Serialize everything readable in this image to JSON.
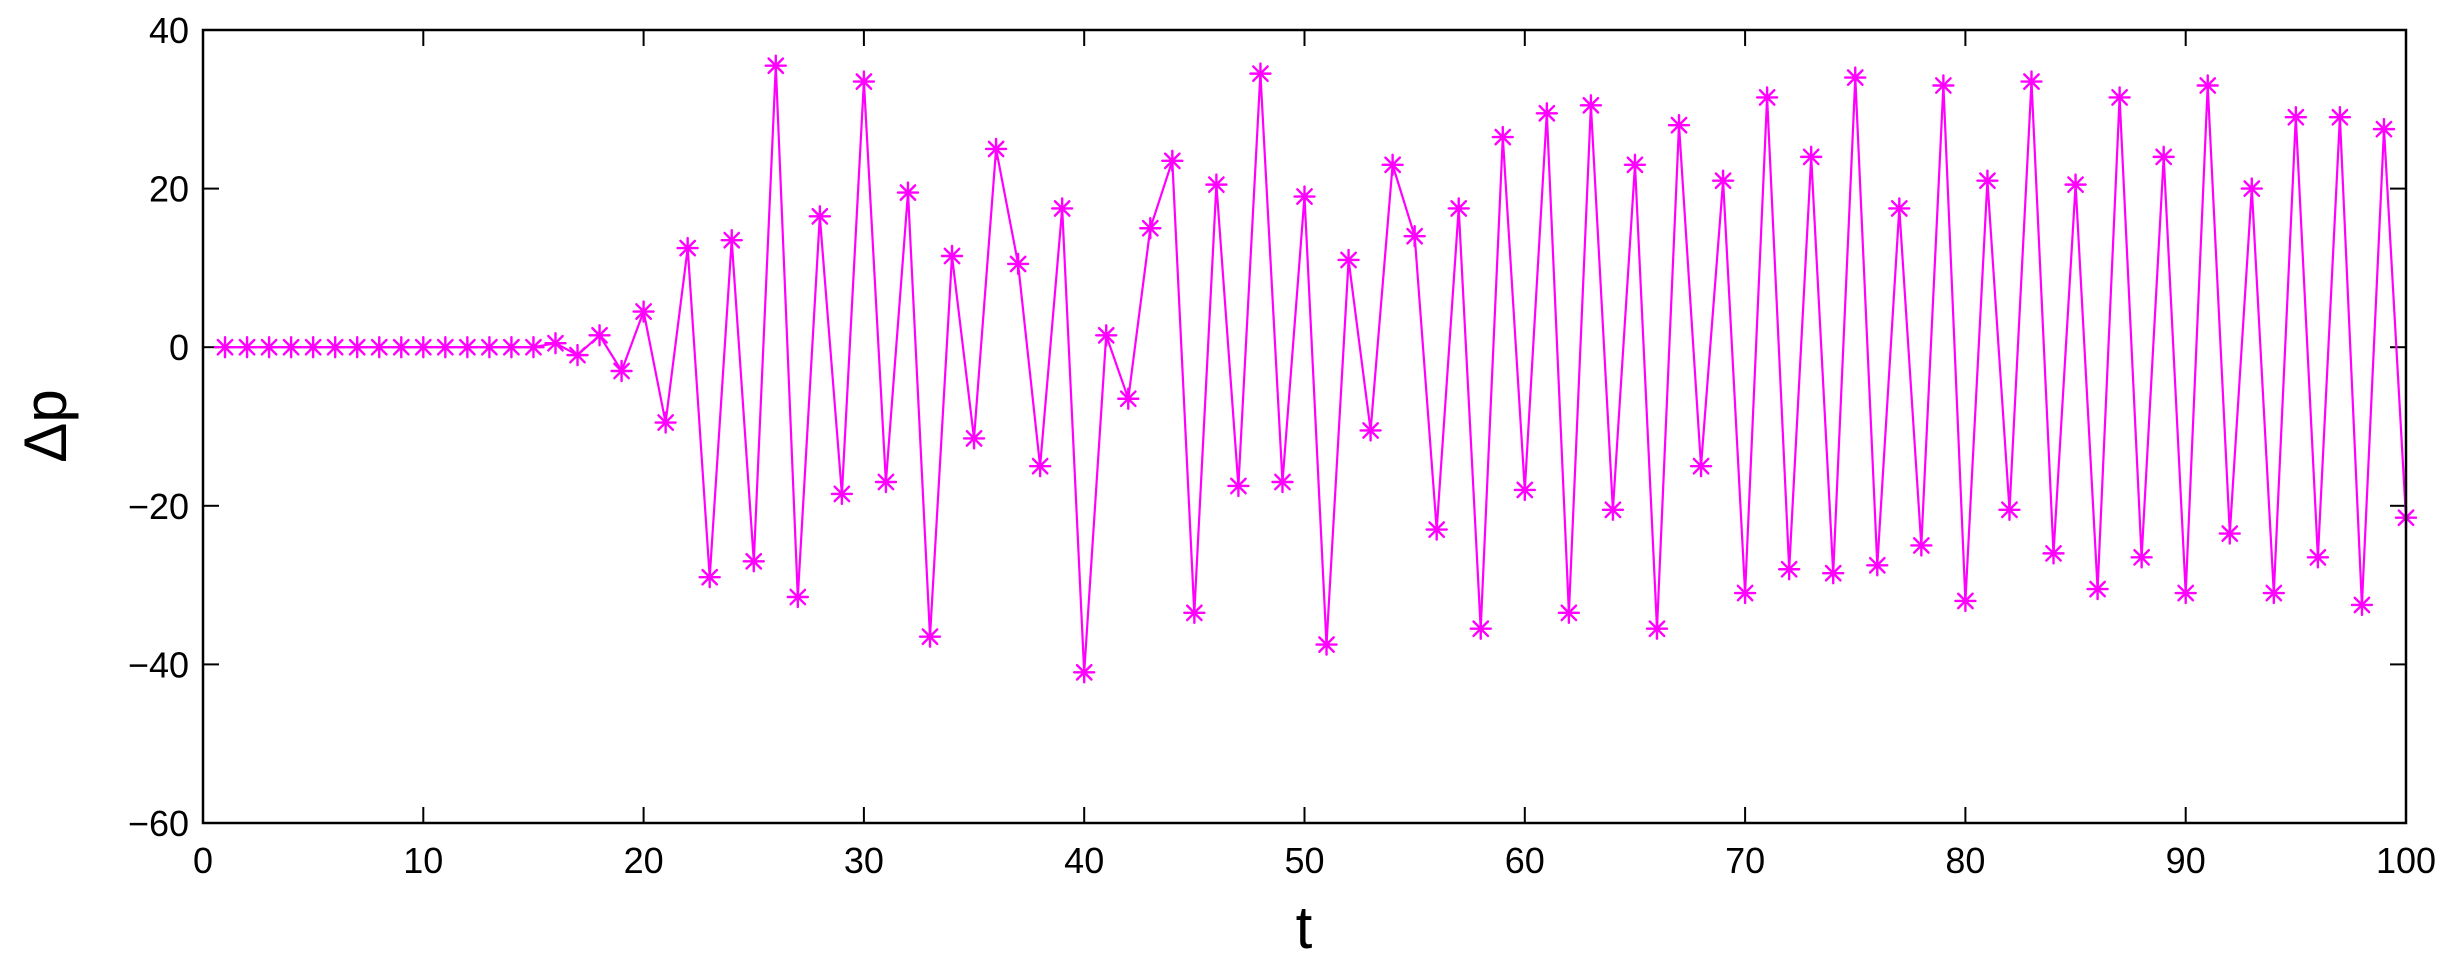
{
  "chart_data": {
    "type": "line",
    "xlabel": "t",
    "ylabel": "Δp",
    "xlim": [
      0,
      100
    ],
    "ylim": [
      -60,
      40
    ],
    "x_ticks": [
      0,
      10,
      20,
      30,
      40,
      50,
      60,
      70,
      80,
      90,
      100
    ],
    "y_ticks": [
      -60,
      -40,
      -20,
      0,
      20,
      40
    ],
    "x_tick_labels": [
      "0",
      "10",
      "20",
      "30",
      "40",
      "50",
      "60",
      "70",
      "80",
      "90",
      "100"
    ],
    "y_tick_labels": [
      "−60",
      "−40",
      "−20",
      "0",
      "20",
      "40"
    ],
    "grid": false,
    "series": [
      {
        "color": "#ff00ff",
        "marker": "asterisk",
        "x": [
          1,
          2,
          3,
          4,
          5,
          6,
          7,
          8,
          9,
          10,
          11,
          12,
          13,
          14,
          15,
          16,
          17,
          18,
          19,
          20,
          21,
          22,
          23,
          24,
          25,
          26,
          27,
          28,
          29,
          30,
          31,
          32,
          33,
          34,
          35,
          36,
          37,
          38,
          39,
          40,
          41,
          42,
          43,
          44,
          45,
          46,
          47,
          48,
          49,
          50,
          51,
          52,
          53,
          54,
          55,
          56,
          57,
          58,
          59,
          60,
          61,
          62,
          63,
          64,
          65,
          66,
          67,
          68,
          69,
          70,
          71,
          72,
          73,
          74,
          75,
          76,
          77,
          78,
          79,
          80,
          81,
          82,
          83,
          84,
          85,
          86,
          87,
          88,
          89,
          90,
          91,
          92,
          93,
          94,
          95,
          96,
          97,
          98,
          99,
          100
        ],
        "y": [
          0,
          0,
          0,
          0,
          0,
          0,
          0,
          0,
          0,
          0,
          0,
          0,
          0,
          0,
          0,
          0.5,
          -1,
          1.5,
          -3,
          4.5,
          -9.5,
          12.5,
          -29,
          13.5,
          -27,
          35.5,
          -31.5,
          16.5,
          -18.5,
          33.5,
          -17,
          19.5,
          -36.5,
          11.5,
          -11.5,
          25,
          10.5,
          -15,
          17.5,
          -41,
          1.5,
          -6.5,
          15,
          23.5,
          -33.5,
          20.5,
          -17.5,
          34.5,
          -17,
          19,
          -37.5,
          11,
          -10.5,
          23,
          14,
          -23,
          17.5,
          -35.5,
          26.5,
          -18,
          29.5,
          -33.5,
          30.5,
          -20.5,
          23,
          -35.5,
          28,
          -15,
          21,
          -31,
          31.5,
          -28,
          24,
          -28.5,
          34,
          -27.5,
          17.5,
          -25,
          33,
          -32,
          21,
          -20.5,
          33.5,
          -26,
          20.5,
          -30.5,
          31.5,
          -26.5,
          24,
          -31,
          33,
          -23.5,
          20,
          -31,
          29,
          -26.5,
          29,
          -32.5,
          27.5,
          -21.5
        ]
      }
    ]
  }
}
